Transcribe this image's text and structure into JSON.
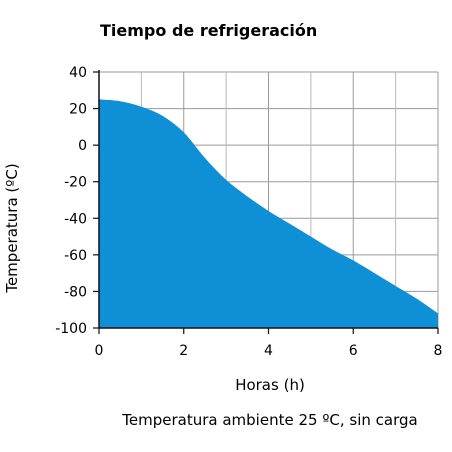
{
  "chart_data": {
    "type": "area",
    "title": "Tiempo de refrigeración",
    "xlabel": "Horas (h)",
    "ylabel": "Temperatura (ºC)",
    "note": "Temperatura ambiente 25 ºC, sin carga",
    "xlim": [
      0,
      8
    ],
    "ylim": [
      -100,
      40
    ],
    "xticks": [
      0,
      2,
      4,
      6,
      8
    ],
    "yticks": [
      40,
      20,
      0,
      -20,
      -40,
      -60,
      -80,
      -100
    ],
    "grid": true,
    "legend": "none",
    "fill_color": "#0f8fd6",
    "series": [
      {
        "x": [
          0,
          0.5,
          1.0,
          1.5,
          2.0,
          2.5,
          3.0,
          3.5,
          4.0,
          4.5,
          5.0,
          5.5,
          6.0,
          6.5,
          7.0,
          7.5,
          8.0
        ],
        "y": [
          25,
          24,
          21,
          16,
          7,
          -7,
          -19,
          -28,
          -36,
          -43,
          -50,
          -57,
          -63,
          -70,
          -77,
          -84,
          -92
        ]
      }
    ]
  }
}
